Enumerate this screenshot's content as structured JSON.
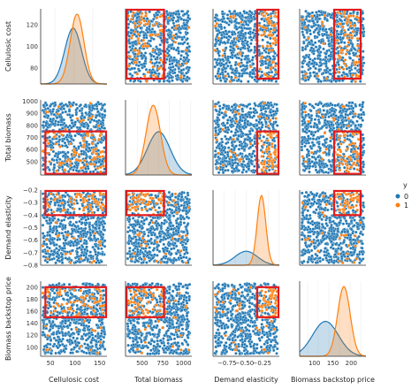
{
  "chart_data": {
    "type": "scatter",
    "subtype": "pairplot",
    "variables": [
      "Cellulosic cost",
      "Total biomass",
      "Demand elasticity",
      "Biomass backstop price"
    ],
    "ranges": [
      [
        65,
        135
      ],
      [
        390,
        1010
      ],
      [
        -0.8,
        -0.2
      ],
      [
        85,
        210
      ]
    ],
    "ticks": [
      [
        80,
        100,
        120
      ],
      [
        500,
        600,
        700,
        800,
        900,
        1000
      ],
      [
        -0.8,
        -0.7,
        -0.6,
        -0.5,
        -0.4,
        -0.3,
        -0.2
      ],
      [
        100,
        120,
        140,
        160,
        180,
        200
      ]
    ],
    "xticks": [
      [
        50,
        100,
        150
      ],
      [
        500,
        750,
        1000
      ],
      [
        -0.75,
        -0.5,
        -0.25
      ],
      [
        100,
        150,
        200
      ]
    ],
    "xtick_labels": [
      [
        "50",
        "100",
        "150"
      ],
      [
        "500",
        "750",
        "1000"
      ],
      [
        "−0.75",
        "−0.50",
        "−0.25"
      ],
      [
        "100",
        "150",
        "200"
      ]
    ],
    "ytick_labels": [
      [
        "80",
        "100",
        "120"
      ],
      [
        "500",
        "600",
        "700",
        "800",
        "900",
        "1000"
      ],
      [
        "−0.8",
        "−0.7",
        "−0.6",
        "−0.5",
        "−0.4",
        "−0.3",
        "−0.2"
      ],
      [
        "100",
        "120",
        "140",
        "160",
        "180",
        "200"
      ]
    ],
    "hue": {
      "title": "y",
      "levels": [
        {
          "name": "0",
          "color": "#1f77b4"
        },
        {
          "name": "1",
          "color": "#ff7f0e"
        }
      ]
    },
    "box_color": "#e41a1c",
    "highlight_region": {
      "Cellulosic cost": [
        70,
        135
      ],
      "Total biomass": [
        400,
        750
      ],
      "Demand elasticity": [
        -0.4,
        -0.2
      ],
      "Biomass backstop price": [
        150,
        200
      ]
    },
    "diag_x_extended": [
      [
        30,
        165
      ],
      [
        150,
        1250
      ],
      [
        -1.0,
        0.0
      ],
      [
        60,
        240
      ]
    ],
    "densities": {
      "Cellulosic cost": {
        "0": {
          "mean": 96,
          "sd": 17,
          "peak": 0.8
        },
        "1": {
          "mean": 104,
          "sd": 14,
          "peak": 1.0
        }
      },
      "Total biomass": {
        "0": {
          "mean": 700,
          "sd": 190,
          "peak": 0.62
        },
        "1": {
          "mean": 610,
          "sd": 120,
          "peak": 1.0
        }
      },
      "Demand elasticity": {
        "0": {
          "mean": -0.5,
          "sd": 0.17,
          "peak": 0.2
        },
        "1": {
          "mean": -0.27,
          "sd": 0.065,
          "peak": 1.0
        }
      },
      "Biomass backstop price": {
        "0": {
          "mean": 130,
          "sd": 35,
          "peak": 0.5
        },
        "1": {
          "mean": 180,
          "sd": 17,
          "peak": 1.0
        }
      }
    },
    "sample_size": 720
  }
}
